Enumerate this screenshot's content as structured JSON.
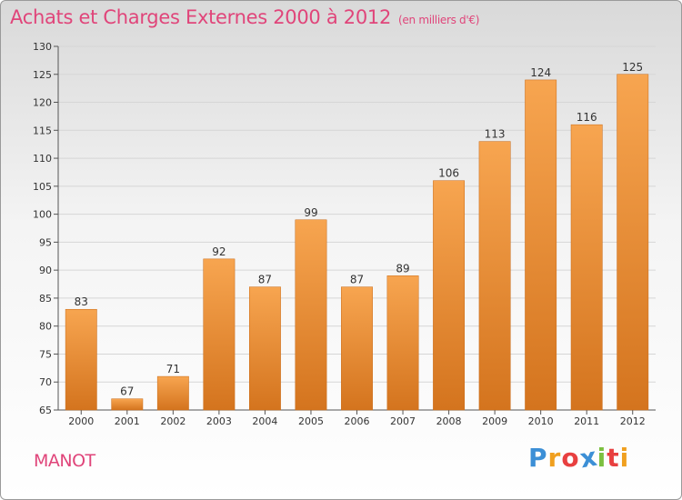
{
  "header": {
    "title": "Achats et Charges Externes 2000 à 2012",
    "subtitle": "(en milliers d'€)"
  },
  "footer": {
    "city": "MANOT",
    "brand_letters": [
      "P",
      "r",
      "o",
      "x",
      "i",
      "t",
      "i"
    ],
    "brand_colors": [
      "#3c8fd6",
      "#f0a020",
      "#e84040",
      "#3c8fd6",
      "#7cc040",
      "#e84040",
      "#f0a020"
    ]
  },
  "chart_data": {
    "type": "bar",
    "title": "Achats et Charges Externes 2000 à 2012",
    "categories": [
      "2000",
      "2001",
      "2002",
      "2003",
      "2004",
      "2005",
      "2006",
      "2007",
      "2008",
      "2009",
      "2010",
      "2011",
      "2012"
    ],
    "values": [
      83,
      67,
      71,
      92,
      87,
      99,
      87,
      89,
      106,
      113,
      124,
      116,
      125
    ],
    "data_labels": [
      "83",
      "67",
      "71",
      "92",
      "87",
      "99",
      "87",
      "89",
      "106",
      "113",
      "124",
      "116",
      "125"
    ],
    "ylim": [
      65,
      130
    ],
    "yticks": [
      65,
      70,
      75,
      80,
      85,
      90,
      95,
      100,
      105,
      110,
      115,
      120,
      125,
      130
    ],
    "grid": true,
    "bar_color_top": "#f7a550",
    "bar_color_bottom": "#d4741e"
  }
}
